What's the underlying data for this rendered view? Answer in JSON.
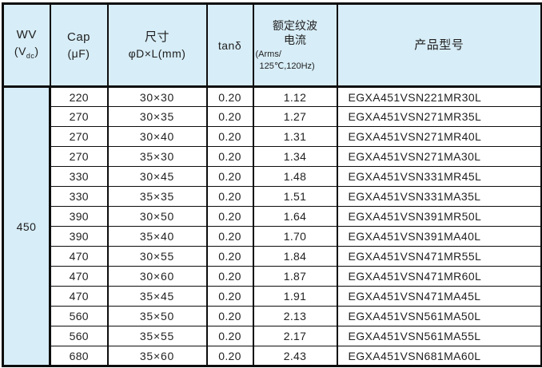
{
  "table": {
    "header": {
      "wv_line1": "WV",
      "wv_line2_pre": "(V",
      "wv_sub": "dc",
      "wv_line2_post": ")",
      "cap_line1": "Cap",
      "cap_line2": "(μF)",
      "size_line1": "尺寸",
      "size_line2": "φD×L(mm)",
      "tand": "tanδ",
      "ripple_line1": "额定纹波",
      "ripple_line2": "电流",
      "ripple_line3": "(Arms/",
      "ripple_line4": "125℃,120Hz)",
      "model": "产品型号"
    },
    "wv_value": "450",
    "rows": [
      {
        "cap": "220",
        "size": "30×30",
        "tand": "0.20",
        "ripple": "1.12",
        "model": "EGXA451VSN221MR30L"
      },
      {
        "cap": "270",
        "size": "30×35",
        "tand": "0.20",
        "ripple": "1.27",
        "model": "EGXA451VSN271MR35L"
      },
      {
        "cap": "270",
        "size": "30×40",
        "tand": "0.20",
        "ripple": "1.31",
        "model": "EGXA451VSN271MR40L"
      },
      {
        "cap": "270",
        "size": "35×30",
        "tand": "0.20",
        "ripple": "1.34",
        "model": "EGXA451VSN271MA30L"
      },
      {
        "cap": "330",
        "size": "30×45",
        "tand": "0.20",
        "ripple": "1.48",
        "model": "EGXA451VSN331MR45L"
      },
      {
        "cap": "330",
        "size": "35×35",
        "tand": "0.20",
        "ripple": "1.51",
        "model": "EGXA451VSN331MA35L"
      },
      {
        "cap": "390",
        "size": "30×50",
        "tand": "0.20",
        "ripple": "1.64",
        "model": "EGXA451VSN391MR50L"
      },
      {
        "cap": "390",
        "size": "35×40",
        "tand": "0.20",
        "ripple": "1.70",
        "model": "EGXA451VSN391MA40L"
      },
      {
        "cap": "470",
        "size": "30×55",
        "tand": "0.20",
        "ripple": "1.84",
        "model": "EGXA451VSN471MR55L"
      },
      {
        "cap": "470",
        "size": "30×60",
        "tand": "0.20",
        "ripple": "1.87",
        "model": "EGXA451VSN471MR60L"
      },
      {
        "cap": "470",
        "size": "35×45",
        "tand": "0.20",
        "ripple": "1.91",
        "model": "EGXA451VSN471MA45L"
      },
      {
        "cap": "560",
        "size": "35×50",
        "tand": "0.20",
        "ripple": "2.13",
        "model": "EGXA451VSN561MA50L"
      },
      {
        "cap": "560",
        "size": "35×55",
        "tand": "0.20",
        "ripple": "2.17",
        "model": "EGXA451VSN561MA55L"
      },
      {
        "cap": "680",
        "size": "35×60",
        "tand": "0.20",
        "ripple": "2.43",
        "model": "EGXA451VSN681MA60L"
      }
    ],
    "colors": {
      "header_bg": "#d7edf7",
      "border": "#0d0d0d",
      "text": "#1f1f1f"
    }
  }
}
